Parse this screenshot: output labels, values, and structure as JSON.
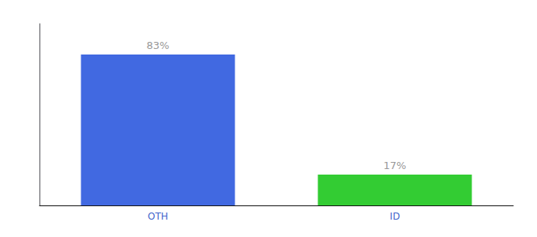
{
  "chart_data": {
    "type": "bar",
    "categories": [
      "OTH",
      "ID"
    ],
    "values": [
      83,
      17
    ],
    "value_labels": [
      "83%",
      "17%"
    ],
    "colors": [
      "#4169e1",
      "#33cc33"
    ],
    "ylim": [
      0,
      100
    ],
    "data_labels": true,
    "tick_labels": "x",
    "grid": false
  }
}
